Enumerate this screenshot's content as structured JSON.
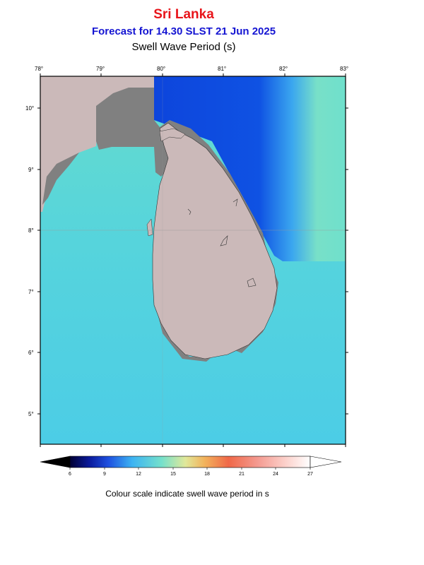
{
  "header": {
    "region": "Sri Lanka",
    "forecast": "Forecast for  14.30 SLST 21 Jun 2025",
    "parameter": "Swell Wave Period (s)"
  },
  "map": {
    "lon_range": [
      78,
      83
    ],
    "lat_range": [
      4.5,
      10.5
    ],
    "lon_ticks": [
      "78°",
      "79°",
      "80°",
      "81°",
      "82°",
      "83°"
    ],
    "lat_ticks": [
      "10°",
      "9°",
      "8°",
      "7°",
      "6°",
      "5°"
    ],
    "colors": {
      "land": "#cbb9b9",
      "masked_sea": "#808080",
      "east_sea": "#0d4ce0",
      "bay_sea": "#70e0d0",
      "open_sea": "#4dcfe6"
    }
  },
  "colorbar": {
    "min": 6,
    "max": 27,
    "tick_labels": [
      "6",
      "9",
      "12",
      "15",
      "18",
      "21",
      "24",
      "27"
    ],
    "caption": "Colour scale indicate swell wave period in s"
  }
}
